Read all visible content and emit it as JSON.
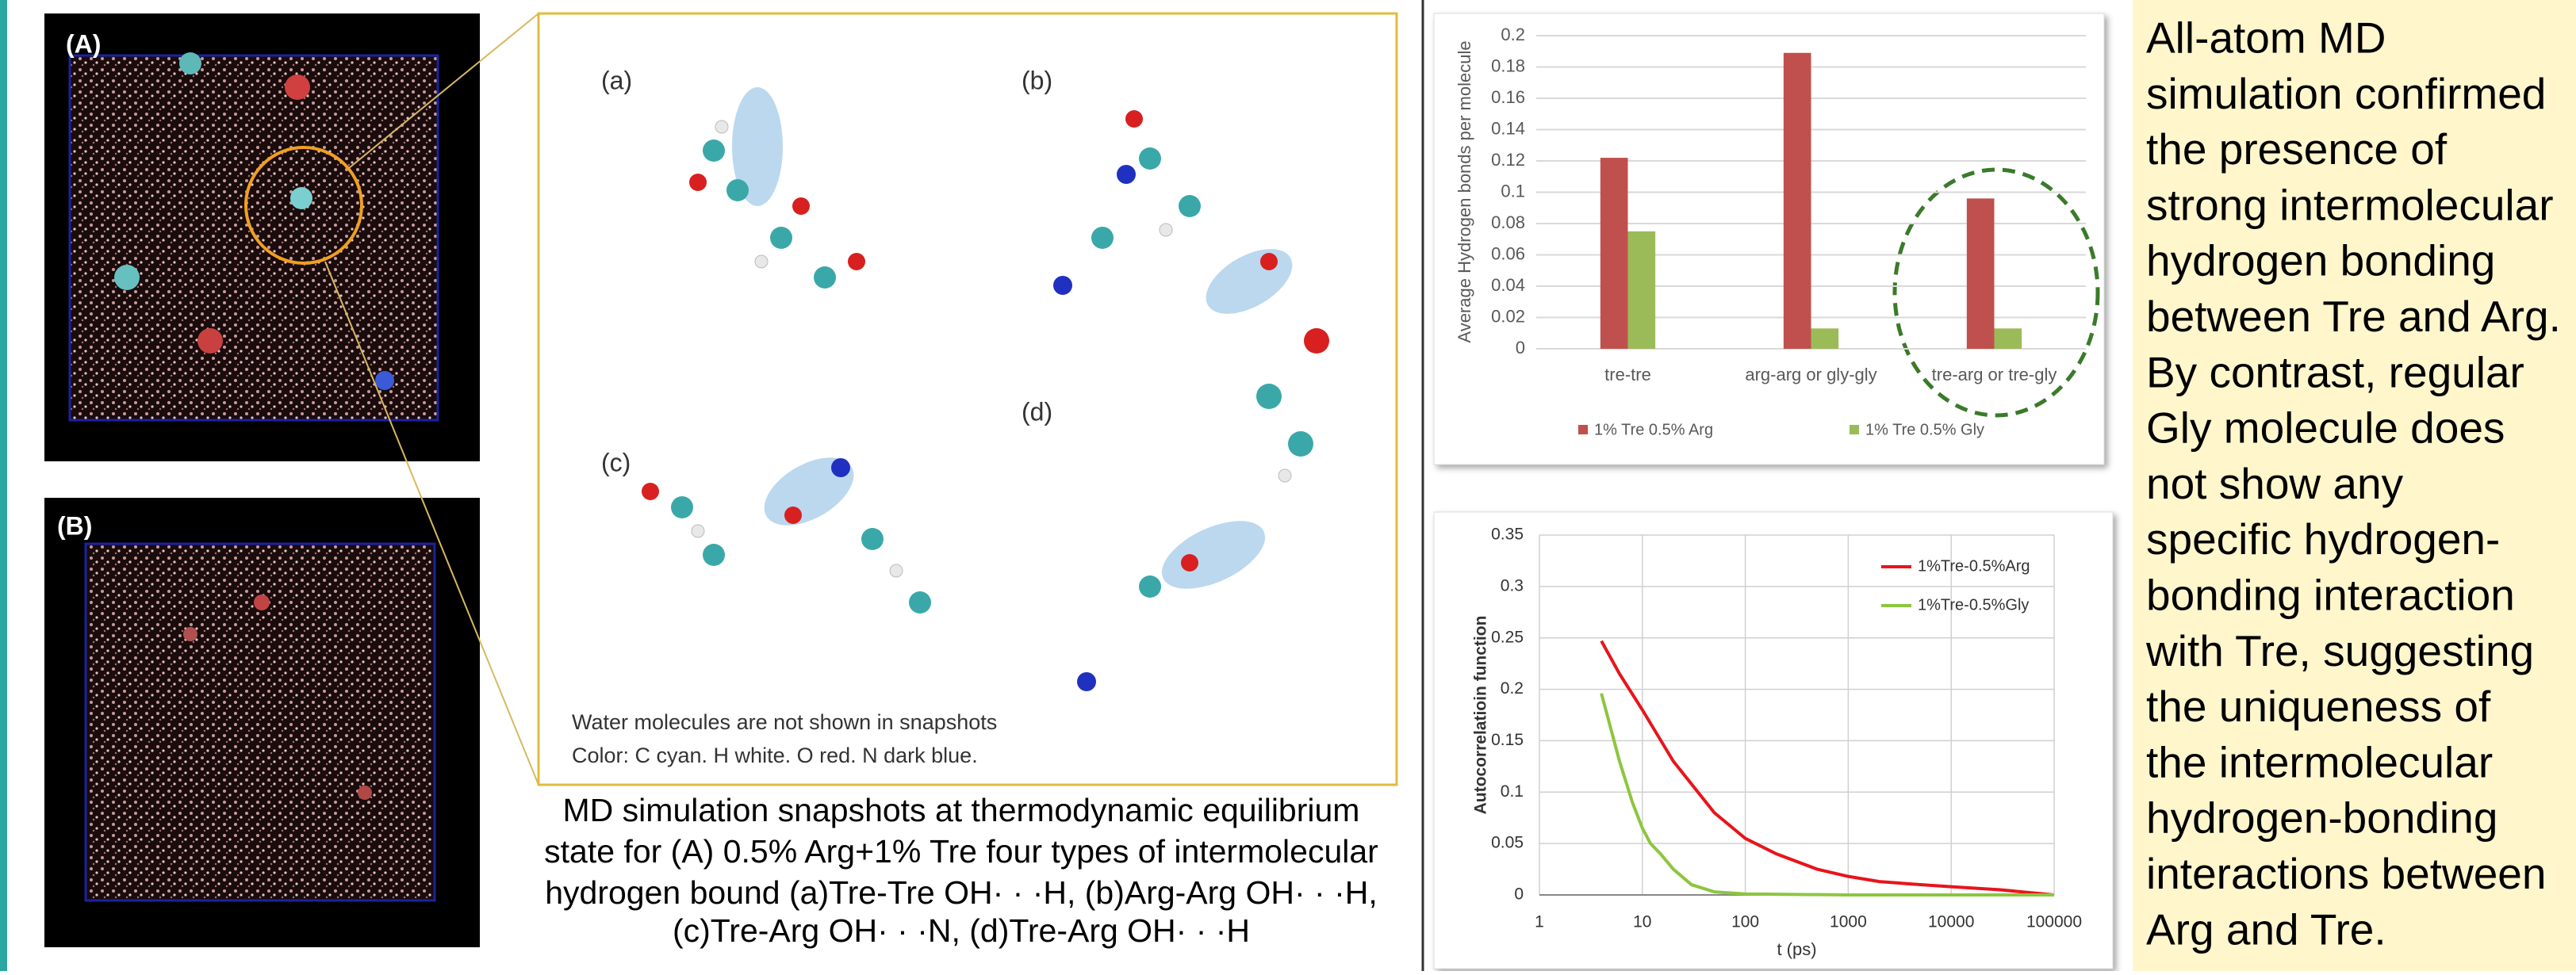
{
  "panels": {
    "a_label": "(A)",
    "b_label": "(B)"
  },
  "snapshots": {
    "labels": [
      "(a)",
      "(b)",
      "(c)",
      "(d)"
    ],
    "notes": [
      "Water molecules are not shown in snapshots",
      "Color: C cyan. H white. O red. N dark blue."
    ]
  },
  "caption": {
    "lines": [
      "MD simulation snapshots at thermodynamic equilibrium",
      "state for (A) 0.5% Arg+1% Tre four types of intermolecular",
      "hydrogen bound (a)Tre-Tre OH· · ·H, (b)Arg-Arg OH· · ·H,",
      "(c)Tre-Arg OH· · ·N, (d)Tre-Arg OH· · ·H"
    ]
  },
  "summary": {
    "lines": [
      "All-atom MD",
      "simulation confirmed",
      "the presence of",
      "strong intermolecular",
      "hydrogen bonding",
      "between Tre and Arg.",
      "By contrast, regular",
      "Gly molecule does",
      "not show any",
      "specific hydrogen-",
      "bonding interaction",
      "with Tre, suggesting",
      "the uniqueness of",
      "the intermolecular",
      "hydrogen-bonding",
      "interactions between",
      "Arg and Tre."
    ]
  },
  "chart_data": [
    {
      "type": "bar",
      "y_label": "Average Hydrogen bonds per molecule",
      "categories": [
        "tre-tre",
        "arg-arg or gly-gly",
        "tre-arg or tre-gly"
      ],
      "series": [
        {
          "name": "1% Tre 0.5% Arg",
          "color": "#c0504d",
          "values": [
            0.122,
            0.189,
            0.096
          ]
        },
        {
          "name": "1% Tre 0.5% Gly",
          "color": "#9bbb59",
          "values": [
            0.075,
            0.013,
            0.013
          ]
        }
      ],
      "ylim": [
        0,
        0.2
      ],
      "yticks": [
        0,
        0.02,
        0.04,
        0.06,
        0.08,
        0.1,
        0.12,
        0.14,
        0.16,
        0.18,
        0.2
      ],
      "grid": true,
      "legend": "bottom"
    },
    {
      "type": "line",
      "x_label": "t (ps)",
      "y_label": "Autocorrelatioin function",
      "xscale": "log",
      "series": [
        {
          "name": "1%Tre-0.5%Arg",
          "color": "#e8141b",
          "x": [
            4,
            6,
            10,
            20,
            50,
            100,
            200,
            500,
            1000,
            2000,
            5000,
            10000,
            30000,
            100000
          ],
          "values": [
            0.247,
            0.215,
            0.18,
            0.13,
            0.08,
            0.055,
            0.04,
            0.025,
            0.018,
            0.013,
            0.01,
            0.008,
            0.005,
            0
          ]
        },
        {
          "name": "1%Tre-0.5%Gly",
          "color": "#8cc63f",
          "x": [
            4,
            6,
            8,
            10,
            12,
            15,
            20,
            30,
            50,
            100,
            1000,
            100000
          ],
          "values": [
            0.196,
            0.13,
            0.09,
            0.065,
            0.05,
            0.04,
            0.025,
            0.01,
            0.003,
            0.001,
            0,
            0
          ]
        }
      ],
      "xlim": [
        1,
        100000
      ],
      "xticks": [
        1,
        10,
        100,
        1000,
        10000,
        100000
      ],
      "ylim": [
        0,
        0.35
      ],
      "yticks": [
        0,
        0.05,
        0.1,
        0.15,
        0.2,
        0.25,
        0.3,
        0.35
      ],
      "grid": true,
      "legend": "upper right"
    }
  ]
}
